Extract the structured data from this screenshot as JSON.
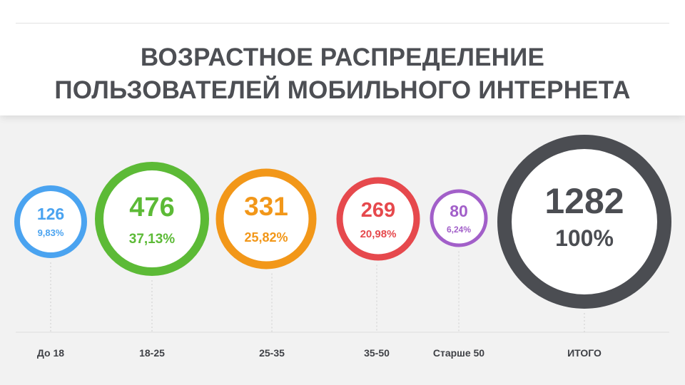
{
  "header": {
    "title_line1": "ВОЗРАСТНОЕ РАСПРЕДЕЛЕНИЕ",
    "title_line2": "ПОЛЬЗОВАТЕЛЕЙ МОБИЛЬНОГО ИНТЕРНЕТА"
  },
  "chart_data": {
    "type": "bubble",
    "title": "ВОЗРАСТНОЕ РАСПРЕДЕЛЕНИЕ ПОЛЬЗОВАТЕЛЕЙ МОБИЛЬНОГО ИНТЕРНЕТА",
    "categories": [
      "До 18",
      "18-25",
      "25-35",
      "35-50",
      "Старше 50",
      "ИТОГО"
    ],
    "values": [
      126,
      476,
      331,
      269,
      80,
      1282
    ],
    "value_labels": [
      "126",
      "476",
      "331",
      "269",
      "80",
      "1282"
    ],
    "percent_labels": [
      "9,83%",
      "37,13%",
      "25,82%",
      "20,98%",
      "6,24%",
      "100%"
    ],
    "colors": [
      "#4aa3f0",
      "#5cba36",
      "#f29719",
      "#e6494d",
      "#a25fc9",
      "#4b4d52"
    ]
  }
}
